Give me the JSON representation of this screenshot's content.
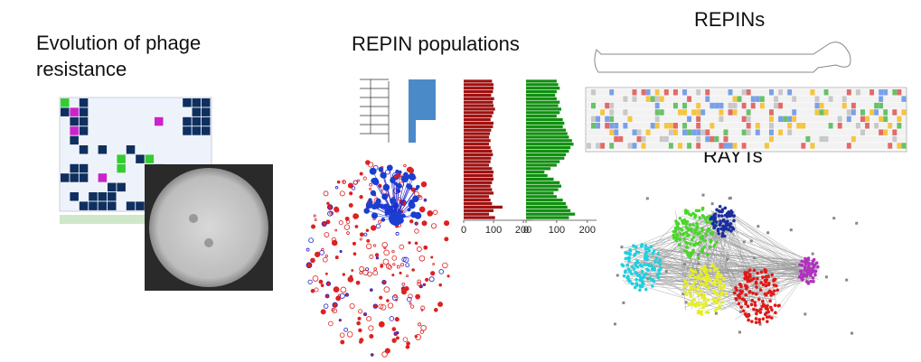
{
  "headings": {
    "phage_line1": "Evolution of phage",
    "phage_line2": "resistance",
    "repin_populations": "REPIN populations",
    "repins": "REPINs",
    "rayts": "RAYTs"
  },
  "chart_data": [
    {
      "type": "bar",
      "orientation": "horizontal",
      "color": "#a01010",
      "values": [
        95,
        100,
        100,
        98,
        92,
        102,
        98,
        100,
        105,
        100,
        95,
        90,
        100,
        98,
        92,
        88,
        85,
        90,
        85,
        90,
        95,
        98,
        92,
        90,
        85,
        95,
        100,
        98,
        100,
        95,
        90,
        95,
        100,
        85,
        90,
        95,
        130,
        100,
        85,
        105
      ],
      "xlim": [
        0,
        230
      ],
      "xticks": [
        0,
        100,
        200
      ]
    },
    {
      "type": "bar",
      "orientation": "horizontal",
      "color": "#109010",
      "values": [
        100,
        105,
        110,
        100,
        95,
        100,
        110,
        105,
        115,
        110,
        100,
        120,
        125,
        120,
        130,
        135,
        140,
        150,
        155,
        145,
        140,
        130,
        125,
        110,
        100,
        80,
        60,
        70,
        90,
        110,
        115,
        105,
        90,
        100,
        120,
        130,
        135,
        145,
        160,
        140
      ],
      "xlim": [
        0,
        230
      ],
      "xticks": [
        0,
        100,
        200
      ]
    }
  ]
}
